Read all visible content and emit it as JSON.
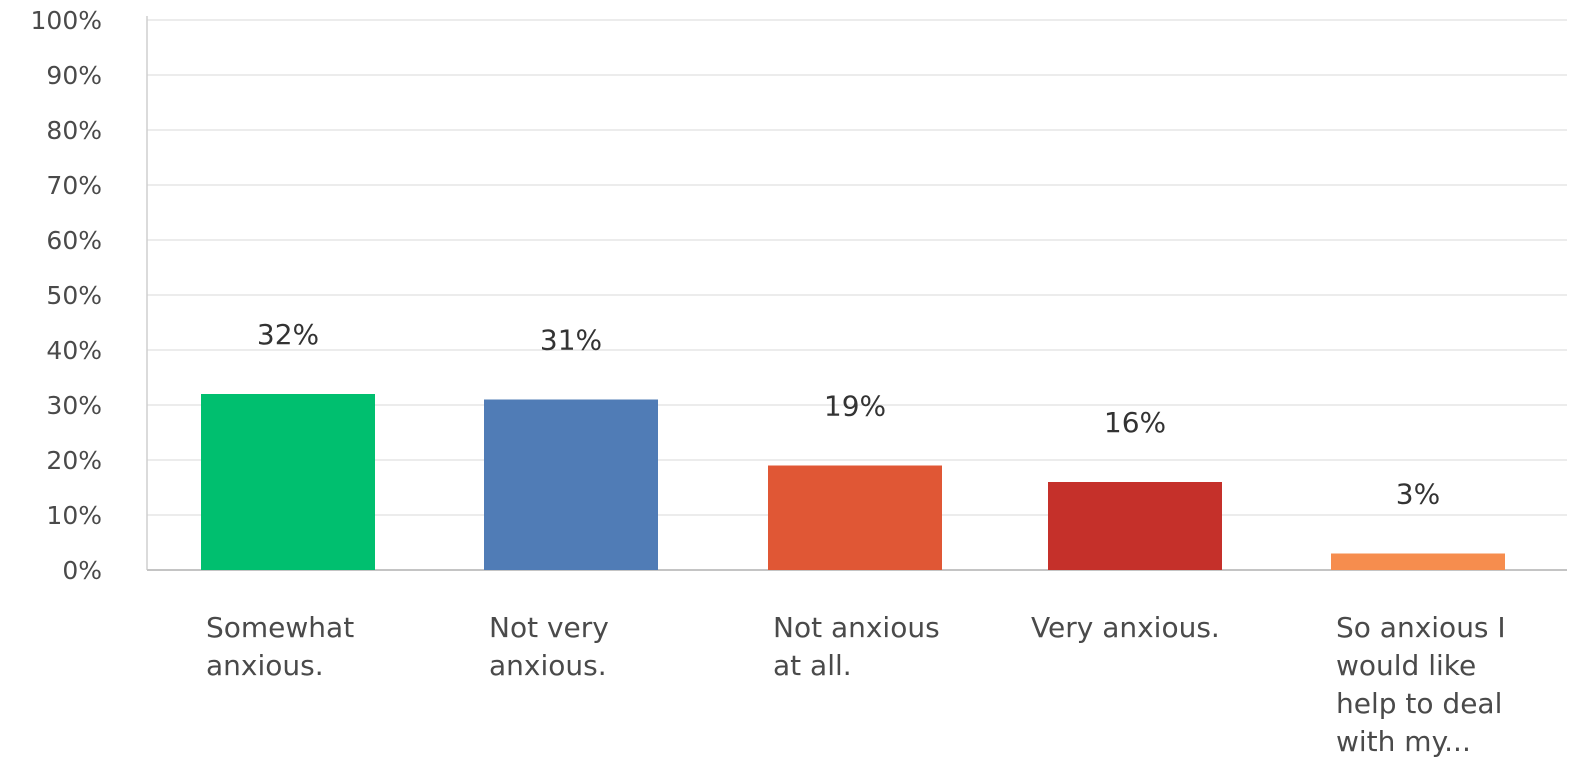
{
  "chart_data": {
    "type": "bar",
    "categories": [
      [
        "Somewhat",
        "anxious."
      ],
      [
        "Not very",
        "anxious."
      ],
      [
        "Not anxious",
        "at all."
      ],
      [
        "Very anxious."
      ],
      [
        "So anxious I",
        "would like",
        "help to deal",
        "with my..."
      ]
    ],
    "values": [
      32,
      31,
      19,
      16,
      3
    ],
    "data_labels": [
      "32%",
      "31%",
      "19%",
      "16%",
      "3%"
    ],
    "colors": [
      "#00bf6f",
      "#507cb6",
      "#e05735",
      "#c5302a",
      "#f68d4e"
    ],
    "y_ticks": [
      "0%",
      "10%",
      "20%",
      "30%",
      "40%",
      "50%",
      "60%",
      "70%",
      "80%",
      "90%",
      "100%"
    ],
    "ylim": [
      0,
      100
    ],
    "grid": true,
    "title": "",
    "xlabel": "",
    "ylabel": ""
  }
}
